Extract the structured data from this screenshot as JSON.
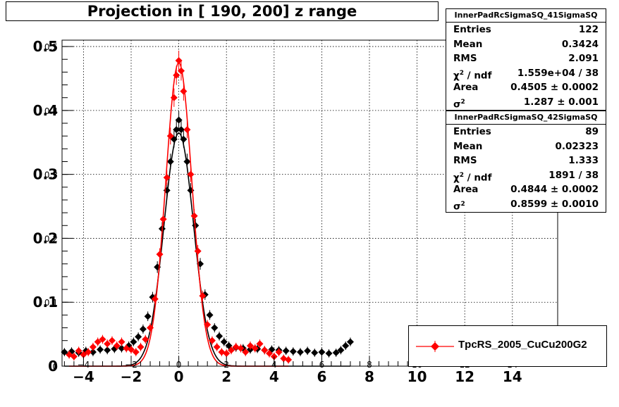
{
  "title": "Projection in [ 190, 200] z range",
  "chart_data": {
    "type": "scatter",
    "xlim": [
      -4.9,
      15.9
    ],
    "ylim": [
      0,
      0.51
    ],
    "x_ticks": [
      -4,
      -2,
      0,
      2,
      4,
      6,
      8,
      10,
      12,
      14
    ],
    "y_ticks": [
      0,
      0.1,
      0.2,
      0.3,
      0.4,
      0.5
    ],
    "x_tick_labels": [
      "−4",
      "−2",
      "0",
      "2",
      "4",
      "6",
      "8",
      "10",
      "12",
      "14"
    ],
    "y_tick_labels": [
      "0",
      "0.1",
      "0.2",
      "0.3",
      "0.4",
      "0.5"
    ],
    "x_overlay_labels": [
      "−4",
      "−2",
      "0",
      "2",
      "4",
      "6",
      "8",
      "10",
      "12",
      "14"
    ],
    "y_overlay_labels": [
      "0",
      "0.1",
      "0.2",
      "0.3",
      "0.4",
      "0.5"
    ],
    "grid": true,
    "series": [
      {
        "name": "InnerPadRcSigmaSQ_41SigmaSQ",
        "color": "#000000",
        "gauss_peak": 0.365,
        "gauss_mean": 0.0,
        "gauss_sigma": 0.62,
        "x_range": [
          -4.8,
          7.2
        ],
        "points": [
          [
            -4.8,
            0.022
          ],
          [
            -4.5,
            0.023
          ],
          [
            -4.2,
            0.021
          ],
          [
            -3.9,
            0.024
          ],
          [
            -3.6,
            0.022
          ],
          [
            -3.3,
            0.026
          ],
          [
            -3.0,
            0.025
          ],
          [
            -2.7,
            0.027
          ],
          [
            -2.4,
            0.028
          ],
          [
            -2.1,
            0.032
          ],
          [
            -1.9,
            0.038
          ],
          [
            -1.7,
            0.046
          ],
          [
            -1.5,
            0.058
          ],
          [
            -1.3,
            0.078
          ],
          [
            -1.1,
            0.108
          ],
          [
            -0.9,
            0.155
          ],
          [
            -0.7,
            0.215
          ],
          [
            -0.5,
            0.275
          ],
          [
            -0.35,
            0.32
          ],
          [
            -0.2,
            0.355
          ],
          [
            -0.1,
            0.37
          ],
          [
            0.0,
            0.385
          ],
          [
            0.1,
            0.37
          ],
          [
            0.2,
            0.355
          ],
          [
            0.35,
            0.32
          ],
          [
            0.5,
            0.275
          ],
          [
            0.7,
            0.22
          ],
          [
            0.9,
            0.16
          ],
          [
            1.1,
            0.112
          ],
          [
            1.3,
            0.08
          ],
          [
            1.5,
            0.06
          ],
          [
            1.7,
            0.047
          ],
          [
            1.9,
            0.038
          ],
          [
            2.1,
            0.032
          ],
          [
            2.4,
            0.029
          ],
          [
            2.7,
            0.028
          ],
          [
            3.0,
            0.026
          ],
          [
            3.3,
            0.027
          ],
          [
            3.6,
            0.025
          ],
          [
            3.9,
            0.026
          ],
          [
            4.2,
            0.025
          ],
          [
            4.5,
            0.024
          ],
          [
            4.8,
            0.023
          ],
          [
            5.1,
            0.022
          ],
          [
            5.4,
            0.024
          ],
          [
            5.7,
            0.021
          ],
          [
            6.0,
            0.022
          ],
          [
            6.3,
            0.02
          ],
          [
            6.6,
            0.021
          ],
          [
            6.8,
            0.025
          ],
          [
            7.0,
            0.032
          ],
          [
            7.2,
            0.038
          ]
        ]
      },
      {
        "name": "InnerPadRcSigmaSQ_42SigmaSQ",
        "color": "#ff0000",
        "gauss_peak": 0.475,
        "gauss_mean": 0.0,
        "gauss_sigma": 0.55,
        "x_range": [
          -4.6,
          4.6
        ],
        "points": [
          [
            -4.6,
            0.018
          ],
          [
            -4.4,
            0.015
          ],
          [
            -4.2,
            0.024
          ],
          [
            -4.0,
            0.018
          ],
          [
            -3.8,
            0.022
          ],
          [
            -3.6,
            0.03
          ],
          [
            -3.4,
            0.038
          ],
          [
            -3.2,
            0.042
          ],
          [
            -3.0,
            0.035
          ],
          [
            -2.8,
            0.04
          ],
          [
            -2.6,
            0.032
          ],
          [
            -2.4,
            0.038
          ],
          [
            -2.2,
            0.028
          ],
          [
            -2.0,
            0.026
          ],
          [
            -1.8,
            0.022
          ],
          [
            -1.6,
            0.03
          ],
          [
            -1.4,
            0.042
          ],
          [
            -1.2,
            0.06
          ],
          [
            -1.0,
            0.105
          ],
          [
            -0.8,
            0.175
          ],
          [
            -0.65,
            0.23
          ],
          [
            -0.5,
            0.295
          ],
          [
            -0.35,
            0.36
          ],
          [
            -0.2,
            0.42
          ],
          [
            -0.1,
            0.455
          ],
          [
            0.0,
            0.478
          ],
          [
            0.1,
            0.462
          ],
          [
            0.2,
            0.43
          ],
          [
            0.35,
            0.37
          ],
          [
            0.5,
            0.3
          ],
          [
            0.65,
            0.235
          ],
          [
            0.8,
            0.18
          ],
          [
            1.0,
            0.11
          ],
          [
            1.2,
            0.065
          ],
          [
            1.4,
            0.04
          ],
          [
            1.6,
            0.03
          ],
          [
            1.8,
            0.022
          ],
          [
            2.0,
            0.02
          ],
          [
            2.2,
            0.025
          ],
          [
            2.4,
            0.03
          ],
          [
            2.6,
            0.028
          ],
          [
            2.8,
            0.022
          ],
          [
            3.0,
            0.032
          ],
          [
            3.2,
            0.028
          ],
          [
            3.4,
            0.035
          ],
          [
            3.6,
            0.025
          ],
          [
            3.8,
            0.02
          ],
          [
            4.0,
            0.015
          ],
          [
            4.2,
            0.022
          ],
          [
            4.4,
            0.012
          ],
          [
            4.6,
            0.01
          ]
        ]
      }
    ]
  },
  "stats": [
    {
      "name": "InnerPadRcSigmaSQ_41SigmaSQ",
      "rows": [
        {
          "label": "Entries",
          "sup": "",
          "value": "122"
        },
        {
          "label": "Mean",
          "sup": "",
          "value": "0.3424"
        },
        {
          "label": "RMS",
          "sup": "",
          "value": "2.091"
        },
        {
          "label": "χ / ndf",
          "sup": "2",
          "value": "1.559e+04 / 38"
        },
        {
          "label": "Area",
          "sup": "",
          "value": "0.4505 ± 0.0002"
        },
        {
          "label": "σ",
          "sup": "2",
          "value": "1.287 ± 0.001"
        }
      ]
    },
    {
      "name": "InnerPadRcSigmaSQ_42SigmaSQ",
      "rows": [
        {
          "label": "Entries",
          "sup": "",
          "value": "89"
        },
        {
          "label": "Mean",
          "sup": "",
          "value": "0.02323"
        },
        {
          "label": "RMS",
          "sup": "",
          "value": "1.333"
        },
        {
          "label": "χ / ndf",
          "sup": "2",
          "value": "1891 / 38"
        },
        {
          "label": "Area",
          "sup": "",
          "value": "0.4844 ± 0.0002"
        },
        {
          "label": "σ",
          "sup": "2",
          "value": "0.8599 ± 0.0010"
        }
      ]
    }
  ],
  "legend": {
    "label": "TpcRS_2005_CuCu200G2",
    "color": "#ff0000",
    "position": "bottom-right"
  }
}
